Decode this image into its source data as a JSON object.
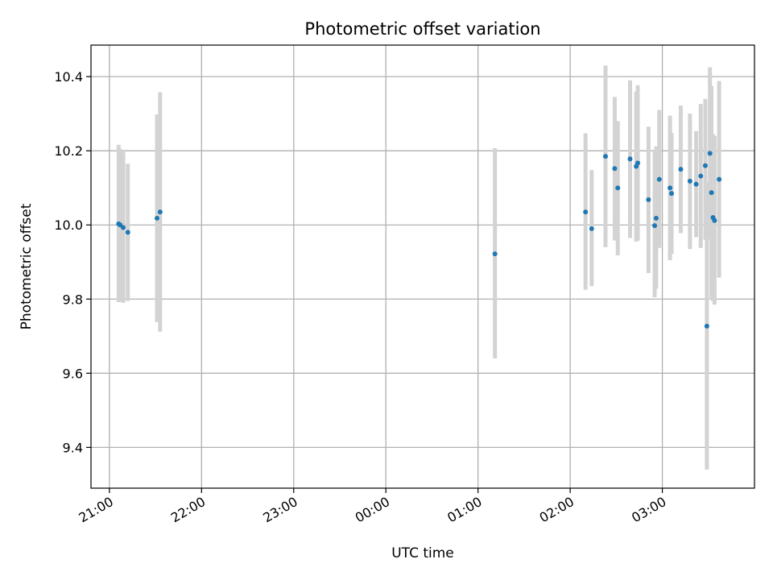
{
  "chart_data": {
    "type": "scatter",
    "title": "Photometric offset variation",
    "xlabel": "UTC time",
    "ylabel": "Photometric offset",
    "x_tick_labels": [
      "21:00",
      "22:00",
      "23:00",
      "00:00",
      "01:00",
      "02:00",
      "03:00"
    ],
    "y_ticks": [
      9.4,
      9.6,
      9.8,
      10.0,
      10.2,
      10.4
    ],
    "y_tick_labels": [
      "9.4",
      "9.6",
      "9.8",
      "10.0",
      "10.2",
      "10.4"
    ],
    "xlim": [
      "20:48",
      "04:00"
    ],
    "ylim": [
      9.29,
      10.485
    ],
    "grid": true,
    "marker_color": "#1f77b4",
    "errorbar_color": "#d3d3d3",
    "points": [
      {
        "x": "21:06",
        "y": 10.003,
        "lo": 9.792,
        "hi": 10.216
      },
      {
        "x": "21:07",
        "y": 10.0,
        "lo": 9.795,
        "hi": 10.205
      },
      {
        "x": "21:09",
        "y": 9.993,
        "lo": 9.79,
        "hi": 10.197
      },
      {
        "x": "21:12",
        "y": 9.98,
        "lo": 9.795,
        "hi": 10.165
      },
      {
        "x": "21:31",
        "y": 10.018,
        "lo": 9.738,
        "hi": 10.298
      },
      {
        "x": "21:33",
        "y": 10.035,
        "lo": 9.712,
        "hi": 10.358
      },
      {
        "x": "01:11",
        "y": 9.922,
        "lo": 9.64,
        "hi": 10.207
      },
      {
        "x": "02:10",
        "y": 10.035,
        "lo": 9.825,
        "hi": 10.247
      },
      {
        "x": "02:14",
        "y": 9.99,
        "lo": 9.835,
        "hi": 10.148
      },
      {
        "x": "02:23",
        "y": 10.185,
        "lo": 9.94,
        "hi": 10.43
      },
      {
        "x": "02:29",
        "y": 10.152,
        "lo": 9.958,
        "hi": 10.345
      },
      {
        "x": "02:31",
        "y": 10.1,
        "lo": 9.918,
        "hi": 10.28
      },
      {
        "x": "02:39",
        "y": 10.178,
        "lo": 9.965,
        "hi": 10.39
      },
      {
        "x": "02:43",
        "y": 10.158,
        "lo": 9.955,
        "hi": 10.36
      },
      {
        "x": "02:44",
        "y": 10.167,
        "lo": 9.958,
        "hi": 10.377
      },
      {
        "x": "02:51",
        "y": 10.068,
        "lo": 9.87,
        "hi": 10.265
      },
      {
        "x": "02:55",
        "y": 9.998,
        "lo": 9.805,
        "hi": 10.2
      },
      {
        "x": "02:56",
        "y": 10.018,
        "lo": 9.828,
        "hi": 10.212
      },
      {
        "x": "02:58",
        "y": 10.123,
        "lo": 9.938,
        "hi": 10.31
      },
      {
        "x": "03:05",
        "y": 10.1,
        "lo": 9.905,
        "hi": 10.295
      },
      {
        "x": "03:06",
        "y": 10.085,
        "lo": 9.922,
        "hi": 10.248
      },
      {
        "x": "03:12",
        "y": 10.15,
        "lo": 9.978,
        "hi": 10.322
      },
      {
        "x": "03:18",
        "y": 10.118,
        "lo": 9.935,
        "hi": 10.3
      },
      {
        "x": "03:22",
        "y": 10.11,
        "lo": 9.967,
        "hi": 10.253
      },
      {
        "x": "03:25",
        "y": 10.132,
        "lo": 9.938,
        "hi": 10.326
      },
      {
        "x": "03:28",
        "y": 10.16,
        "lo": 9.96,
        "hi": 10.34
      },
      {
        "x": "03:29",
        "y": 9.727,
        "lo": 9.34,
        "hi": 10.115
      },
      {
        "x": "03:31",
        "y": 10.193,
        "lo": 9.96,
        "hi": 10.425
      },
      {
        "x": "03:32",
        "y": 10.087,
        "lo": 9.798,
        "hi": 10.375
      },
      {
        "x": "03:33",
        "y": 10.02,
        "lo": 9.795,
        "hi": 10.245
      },
      {
        "x": "03:34",
        "y": 10.012,
        "lo": 9.785,
        "hi": 10.24
      },
      {
        "x": "03:37",
        "y": 10.123,
        "lo": 9.858,
        "hi": 10.388
      }
    ]
  }
}
